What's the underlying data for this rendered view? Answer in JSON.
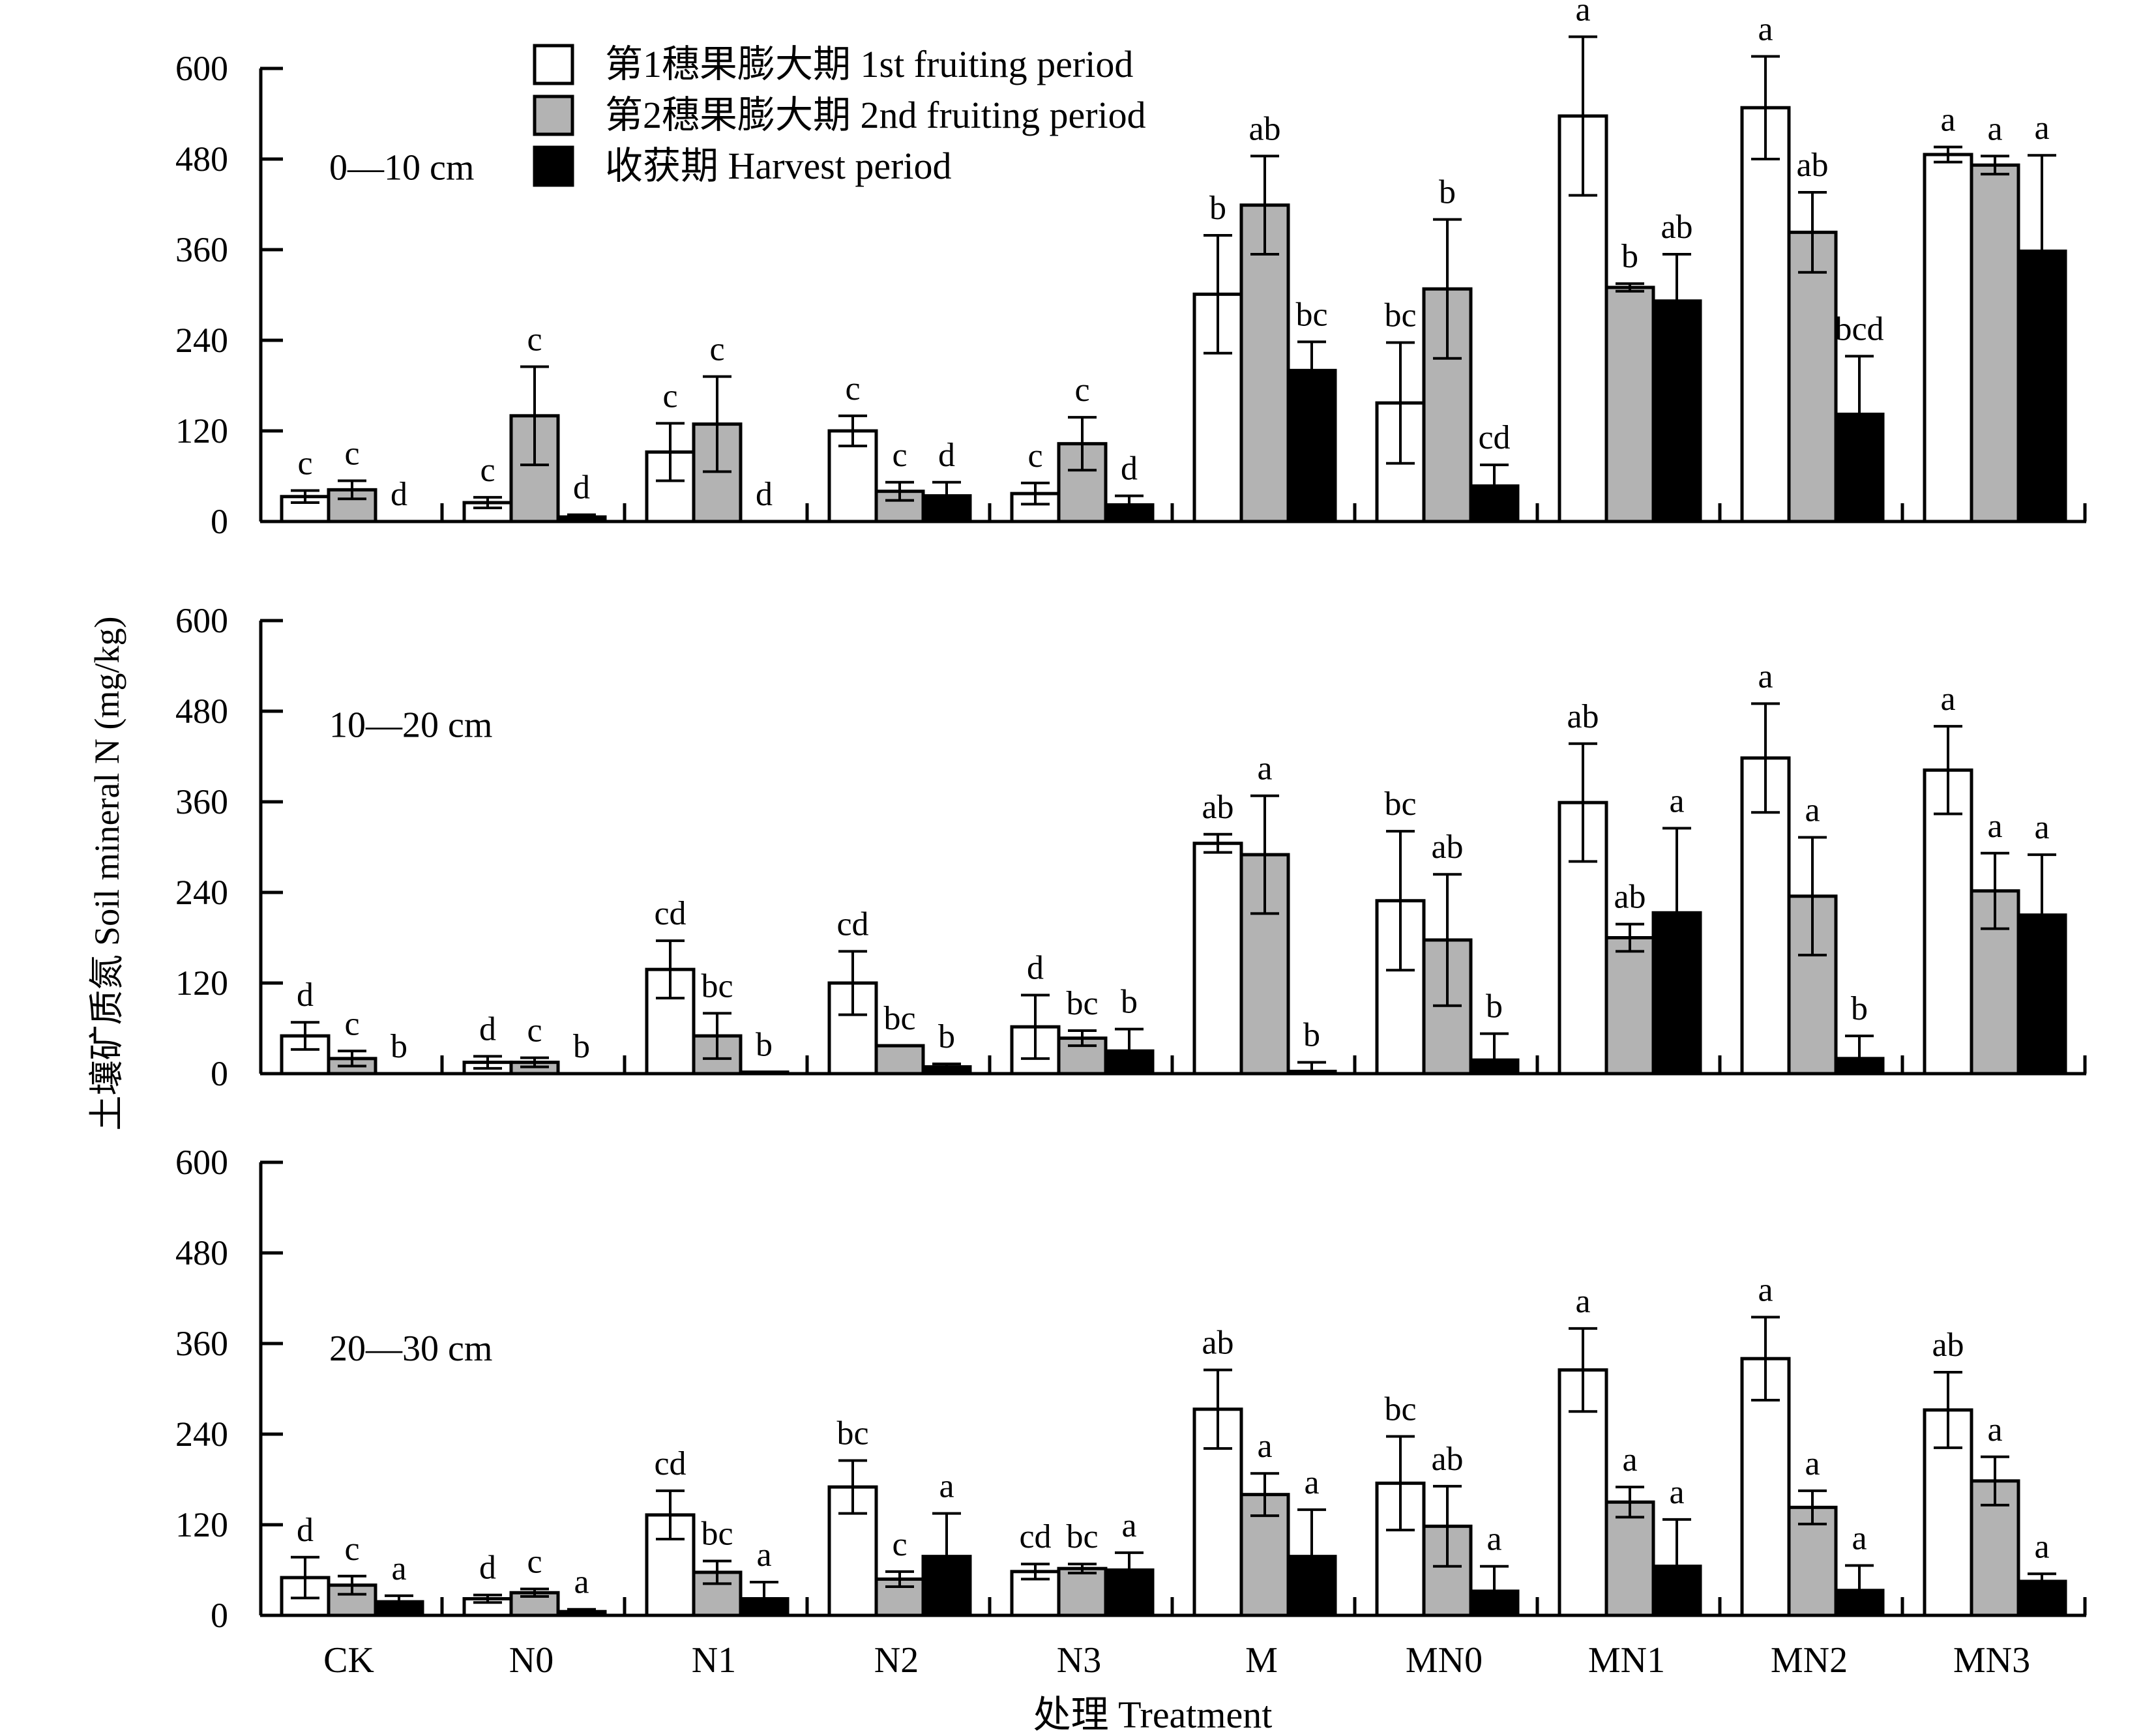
{
  "chart_data": {
    "type": "bar",
    "ylabel": "土壤矿质氮 Soil mineral N (mg/kg)",
    "xlabel": "处理 Treatment",
    "categories": [
      "CK",
      "N0",
      "N1",
      "N2",
      "N3",
      "M",
      "MN0",
      "MN1",
      "MN2",
      "MN3"
    ],
    "yticks": [
      "0",
      "120",
      "240",
      "360",
      "480",
      "600"
    ],
    "ylim": [
      0,
      600
    ],
    "legend": {
      "position": "top-left",
      "entries": [
        {
          "label": "第1穗果膨大期 1st fruiting period",
          "color": "#ffffff"
        },
        {
          "label": "第2穗果膨大期 2nd fruiting period",
          "color": "#b3b3b3"
        },
        {
          "label": "收获期 Harvest period",
          "color": "#000000"
        }
      ]
    },
    "panels": [
      {
        "label": "0—10 cm",
        "series": [
          {
            "name": "第1穗果膨大期 1st fruiting period",
            "values": [
              33,
              25,
              92,
              120,
              37,
              301,
              157,
              537,
              548,
              486
            ],
            "errors": [
              8,
              7,
              38,
              20,
              14,
              78,
              80,
              105,
              68,
              10
            ],
            "letters": [
              "c",
              "c",
              "c",
              "c",
              "c",
              "b",
              "bc",
              "a",
              "a",
              "a"
            ]
          },
          {
            "name": "第2穗果膨大期 2nd fruiting period",
            "values": [
              42,
              140,
              129,
              40,
              103,
              419,
              308,
              310,
              383,
              472
            ],
            "errors": [
              12,
              65,
              63,
              12,
              35,
              65,
              92,
              5,
              53,
              12
            ],
            "letters": [
              "c",
              "c",
              "c",
              "c",
              "c",
              "ab",
              "b",
              "b",
              "ab",
              "a"
            ]
          },
          {
            "name": "收获期 Harvest period",
            "values": [
              0,
              6,
              0,
              34,
              22,
              200,
              47,
              292,
              142,
              358
            ],
            "errors": [
              0,
              3,
              0,
              18,
              12,
              38,
              28,
              62,
              77,
              127
            ],
            "letters": [
              "d",
              "d",
              "d",
              "d",
              "d",
              "bc",
              "cd",
              "ab",
              "bcd",
              "a"
            ]
          }
        ]
      },
      {
        "label": "10—20 cm",
        "series": [
          {
            "name": "第1穗果膨大期 1st fruiting period",
            "values": [
              50,
              15,
              138,
              120,
              62,
              305,
              229,
              359,
              418,
              402
            ],
            "errors": [
              18,
              8,
              38,
              42,
              42,
              12,
              92,
              78,
              72,
              58
            ],
            "letters": [
              "d",
              "d",
              "cd",
              "cd",
              "d",
              "ab",
              "bc",
              "ab",
              "a",
              "a"
            ]
          },
          {
            "name": "第2穗果膨大期 2nd fruiting period",
            "values": [
              20,
              15,
              50,
              37,
              47,
              290,
              177,
              180,
              235,
              242
            ],
            "errors": [
              10,
              6,
              30,
              0,
              10,
              78,
              87,
              18,
              78,
              50
            ],
            "letters": [
              "c",
              "c",
              "bc",
              "bc",
              "bc",
              "a",
              "ab",
              "ab",
              "a",
              "a"
            ]
          },
          {
            "name": "收获期 Harvest period",
            "values": [
              0,
              0,
              2,
              9,
              30,
              3,
              18,
              213,
              20,
              210
            ],
            "errors": [
              0,
              0,
              0,
              4,
              29,
              12,
              35,
              112,
              30,
              80
            ],
            "letters": [
              "b",
              "b",
              "b",
              "b",
              "b",
              "b",
              "b",
              "a",
              "b",
              "a"
            ]
          }
        ]
      },
      {
        "label": "20—30 cm",
        "series": [
          {
            "name": "第1穗果膨大期 1st fruiting period",
            "values": [
              50,
              22,
              133,
              170,
              58,
              273,
              175,
              325,
              340,
              272
            ],
            "errors": [
              27,
              5,
              32,
              35,
              10,
              52,
              62,
              55,
              55,
              50
            ],
            "letters": [
              "d",
              "d",
              "cd",
              "bc",
              "cd",
              "ab",
              "bc",
              "a",
              "a",
              "ab"
            ]
          },
          {
            "name": "第2穗果膨大期 2nd fruiting period",
            "values": [
              40,
              30,
              57,
              48,
              62,
              160,
              118,
              150,
              143,
              178
            ],
            "errors": [
              12,
              5,
              15,
              10,
              6,
              28,
              53,
              20,
              22,
              32
            ],
            "letters": [
              "c",
              "c",
              "bc",
              "c",
              "bc",
              "a",
              "ab",
              "a",
              "a",
              "a"
            ]
          },
          {
            "name": "收获期 Harvest period",
            "values": [
              18,
              5,
              22,
              78,
              60,
              78,
              32,
              65,
              33,
              45
            ],
            "errors": [
              8,
              3,
              22,
              57,
              23,
              62,
              33,
              62,
              33,
              10
            ],
            "letters": [
              "a",
              "a",
              "a",
              "a",
              "a",
              "a",
              "a",
              "a",
              "a",
              "a"
            ]
          }
        ]
      }
    ]
  }
}
